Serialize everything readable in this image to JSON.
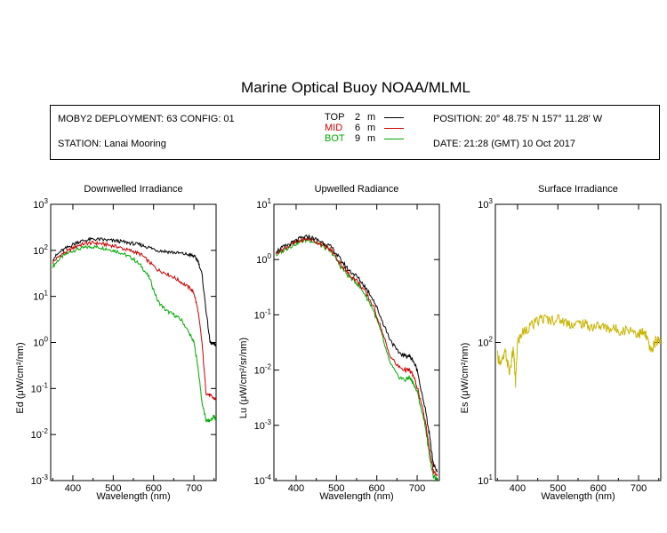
{
  "figure": {
    "title": "Marine Optical Buoy NOAA/MLML"
  },
  "info": {
    "deployment": "MOBY2 DEPLOYMENT: 63 CONFIG: 01",
    "station": "STATION: Lanai Mooring",
    "position": "POSITION: 20° 48.75' N   157° 11.28' W",
    "date": "DATE: 21:28 (GMT) 10 Oct 2017"
  },
  "legend": [
    {
      "name": "TOP",
      "depth": "2",
      "unit": "m",
      "color": "#000000"
    },
    {
      "name": "MID",
      "depth": "6",
      "unit": "m",
      "color": "#cc0000"
    },
    {
      "name": "BOT",
      "depth": "9",
      "unit": "m",
      "color": "#00aa00"
    }
  ],
  "chart_data": [
    {
      "type": "line",
      "title": "Downwelled Irradiance",
      "xlabel": "Wavelength (nm)",
      "ylabel": "Ed  (μW/cm²/nm)",
      "xlim": [
        345,
        755
      ],
      "ylim": [
        0.001,
        1000
      ],
      "yscale": "log",
      "xticks": [
        "400",
        "500",
        "600",
        "700"
      ],
      "yticks": [
        "10-3",
        "10-2",
        "10-1",
        "100",
        "101",
        "102",
        "103"
      ],
      "x": [
        350,
        370,
        390,
        410,
        430,
        450,
        470,
        490,
        510,
        530,
        550,
        570,
        590,
        610,
        630,
        650,
        670,
        690,
        700,
        710,
        720,
        730,
        740,
        750,
        755
      ],
      "series": [
        {
          "name": "TOP",
          "color": "#000000",
          "values": [
            65,
            95,
            120,
            150,
            165,
            175,
            172,
            165,
            160,
            150,
            140,
            130,
            115,
            100,
            95,
            90,
            85,
            80,
            75,
            60,
            30,
            5,
            1.0,
            0.9,
            0.9
          ]
        },
        {
          "name": "MID",
          "color": "#cc0000",
          "values": [
            55,
            80,
            100,
            125,
            140,
            145,
            140,
            130,
            120,
            105,
            95,
            80,
            55,
            38,
            32,
            26,
            20,
            15,
            12,
            5,
            1,
            0.08,
            0.07,
            0.06,
            0.06
          ]
        },
        {
          "name": "BOT",
          "color": "#00aa00",
          "values": [
            45,
            70,
            90,
            105,
            115,
            120,
            115,
            105,
            95,
            80,
            65,
            45,
            25,
            8,
            5,
            4,
            3,
            1.5,
            1,
            0.3,
            0.05,
            0.02,
            0.02,
            0.025,
            0.02
          ]
        }
      ]
    },
    {
      "type": "line",
      "title": "Upwelled Radiance",
      "xlabel": "Wavelength (nm)",
      "ylabel": "Lu  (μW/cm²/sr/nm)",
      "xlim": [
        345,
        755
      ],
      "ylim": [
        0.0001,
        10
      ],
      "yscale": "log",
      "xticks": [
        "400",
        "500",
        "600",
        "700"
      ],
      "yticks": [
        "10-4",
        "10-3",
        "10-2",
        "10-1",
        "100",
        "101"
      ],
      "x": [
        350,
        370,
        390,
        410,
        430,
        450,
        470,
        490,
        510,
        530,
        550,
        570,
        590,
        610,
        630,
        650,
        670,
        680,
        690,
        700,
        720,
        730,
        740,
        750
      ],
      "series": [
        {
          "name": "TOP",
          "color": "#000000",
          "values": [
            1.4,
            1.7,
            2.0,
            2.4,
            2.6,
            2.3,
            2.0,
            1.6,
            1.0,
            0.65,
            0.5,
            0.33,
            0.2,
            0.09,
            0.04,
            0.022,
            0.018,
            0.018,
            0.015,
            0.01,
            0.002,
            0.0007,
            0.0002,
            0.00015
          ]
        },
        {
          "name": "MID",
          "color": "#cc0000",
          "values": [
            1.3,
            1.6,
            1.9,
            2.2,
            2.4,
            2.1,
            1.8,
            1.4,
            0.85,
            0.55,
            0.42,
            0.27,
            0.15,
            0.06,
            0.02,
            0.012,
            0.01,
            0.01,
            0.008,
            0.005,
            0.0012,
            0.0004,
            0.00015,
            0.00012
          ]
        },
        {
          "name": "BOT",
          "color": "#00aa00",
          "values": [
            1.2,
            1.5,
            1.8,
            2.1,
            2.3,
            2.0,
            1.7,
            1.3,
            0.75,
            0.5,
            0.38,
            0.24,
            0.13,
            0.05,
            0.015,
            0.008,
            0.0065,
            0.0075,
            0.006,
            0.004,
            0.001,
            0.0003,
            0.00012,
            0.0001
          ]
        }
      ]
    },
    {
      "type": "line",
      "title": "Surface Irradiance",
      "xlabel": "Wavelength (nm)",
      "ylabel": "Es  (μW/cm²/nm)",
      "xlim": [
        345,
        755
      ],
      "ylim": [
        10,
        1000
      ],
      "yscale": "log",
      "xticks": [
        "400",
        "500",
        "600",
        "700"
      ],
      "yticks": [
        "101",
        "102",
        "103"
      ],
      "x": [
        350,
        360,
        370,
        380,
        390,
        395,
        400,
        410,
        420,
        440,
        460,
        480,
        500,
        520,
        540,
        560,
        580,
        600,
        620,
        640,
        660,
        680,
        700,
        710,
        720,
        730,
        740,
        750,
        755
      ],
      "series": [
        {
          "name": "Es",
          "color": "#c8b400",
          "values": [
            80,
            70,
            85,
            60,
            90,
            50,
            100,
            115,
            125,
            135,
            150,
            145,
            148,
            140,
            135,
            138,
            130,
            132,
            128,
            125,
            122,
            125,
            115,
            118,
            110,
            85,
            100,
            105,
            105
          ]
        }
      ]
    }
  ]
}
